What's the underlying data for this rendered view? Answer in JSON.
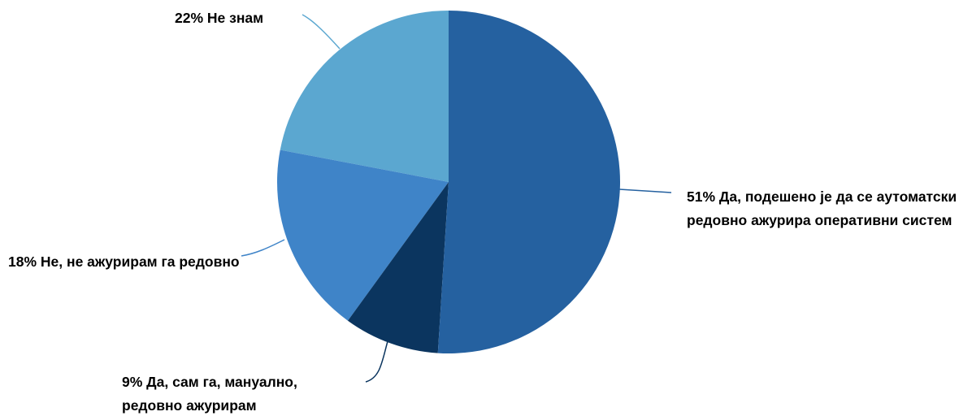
{
  "chart_data": {
    "type": "pie",
    "categories": [
      "Да, подешено је да се аутоматски редовно ажурира оперативни систем",
      "Да, сам га, мануално, редовно ажурирам",
      "Не, не ажурирам га редовно",
      "Не знам"
    ],
    "values": [
      51,
      9,
      18,
      22
    ],
    "value_labels": [
      "51%",
      "9%",
      "18%",
      "22%"
    ],
    "colors": [
      "#2561a0",
      "#0b355f",
      "#3f84c8",
      "#5ba7d0"
    ]
  }
}
